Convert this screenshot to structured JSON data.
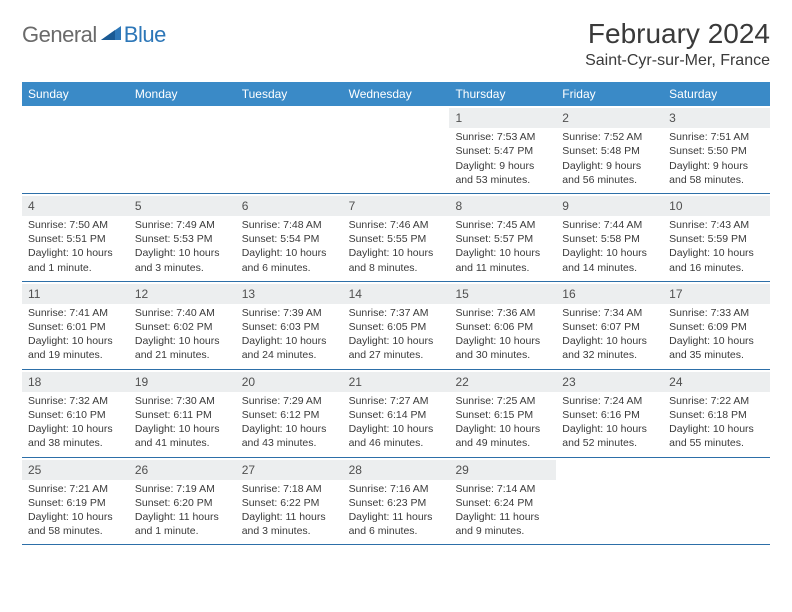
{
  "brand": {
    "part1": "General",
    "part2": "Blue"
  },
  "title": "February 2024",
  "location": "Saint-Cyr-sur-Mer, France",
  "colors": {
    "header_bg": "#3a8ac7",
    "row_border": "#2d6fa8",
    "daynum_bg": "#eceeef",
    "brand_gray": "#6a6a6a",
    "brand_blue": "#2d77b8"
  },
  "weekdays": [
    "Sunday",
    "Monday",
    "Tuesday",
    "Wednesday",
    "Thursday",
    "Friday",
    "Saturday"
  ],
  "weeks": [
    [
      null,
      null,
      null,
      null,
      {
        "n": "1",
        "sr": "Sunrise: 7:53 AM",
        "ss": "Sunset: 5:47 PM",
        "d1": "Daylight: 9 hours",
        "d2": "and 53 minutes."
      },
      {
        "n": "2",
        "sr": "Sunrise: 7:52 AM",
        "ss": "Sunset: 5:48 PM",
        "d1": "Daylight: 9 hours",
        "d2": "and 56 minutes."
      },
      {
        "n": "3",
        "sr": "Sunrise: 7:51 AM",
        "ss": "Sunset: 5:50 PM",
        "d1": "Daylight: 9 hours",
        "d2": "and 58 minutes."
      }
    ],
    [
      {
        "n": "4",
        "sr": "Sunrise: 7:50 AM",
        "ss": "Sunset: 5:51 PM",
        "d1": "Daylight: 10 hours",
        "d2": "and 1 minute."
      },
      {
        "n": "5",
        "sr": "Sunrise: 7:49 AM",
        "ss": "Sunset: 5:53 PM",
        "d1": "Daylight: 10 hours",
        "d2": "and 3 minutes."
      },
      {
        "n": "6",
        "sr": "Sunrise: 7:48 AM",
        "ss": "Sunset: 5:54 PM",
        "d1": "Daylight: 10 hours",
        "d2": "and 6 minutes."
      },
      {
        "n": "7",
        "sr": "Sunrise: 7:46 AM",
        "ss": "Sunset: 5:55 PM",
        "d1": "Daylight: 10 hours",
        "d2": "and 8 minutes."
      },
      {
        "n": "8",
        "sr": "Sunrise: 7:45 AM",
        "ss": "Sunset: 5:57 PM",
        "d1": "Daylight: 10 hours",
        "d2": "and 11 minutes."
      },
      {
        "n": "9",
        "sr": "Sunrise: 7:44 AM",
        "ss": "Sunset: 5:58 PM",
        "d1": "Daylight: 10 hours",
        "d2": "and 14 minutes."
      },
      {
        "n": "10",
        "sr": "Sunrise: 7:43 AM",
        "ss": "Sunset: 5:59 PM",
        "d1": "Daylight: 10 hours",
        "d2": "and 16 minutes."
      }
    ],
    [
      {
        "n": "11",
        "sr": "Sunrise: 7:41 AM",
        "ss": "Sunset: 6:01 PM",
        "d1": "Daylight: 10 hours",
        "d2": "and 19 minutes."
      },
      {
        "n": "12",
        "sr": "Sunrise: 7:40 AM",
        "ss": "Sunset: 6:02 PM",
        "d1": "Daylight: 10 hours",
        "d2": "and 21 minutes."
      },
      {
        "n": "13",
        "sr": "Sunrise: 7:39 AM",
        "ss": "Sunset: 6:03 PM",
        "d1": "Daylight: 10 hours",
        "d2": "and 24 minutes."
      },
      {
        "n": "14",
        "sr": "Sunrise: 7:37 AM",
        "ss": "Sunset: 6:05 PM",
        "d1": "Daylight: 10 hours",
        "d2": "and 27 minutes."
      },
      {
        "n": "15",
        "sr": "Sunrise: 7:36 AM",
        "ss": "Sunset: 6:06 PM",
        "d1": "Daylight: 10 hours",
        "d2": "and 30 minutes."
      },
      {
        "n": "16",
        "sr": "Sunrise: 7:34 AM",
        "ss": "Sunset: 6:07 PM",
        "d1": "Daylight: 10 hours",
        "d2": "and 32 minutes."
      },
      {
        "n": "17",
        "sr": "Sunrise: 7:33 AM",
        "ss": "Sunset: 6:09 PM",
        "d1": "Daylight: 10 hours",
        "d2": "and 35 minutes."
      }
    ],
    [
      {
        "n": "18",
        "sr": "Sunrise: 7:32 AM",
        "ss": "Sunset: 6:10 PM",
        "d1": "Daylight: 10 hours",
        "d2": "and 38 minutes."
      },
      {
        "n": "19",
        "sr": "Sunrise: 7:30 AM",
        "ss": "Sunset: 6:11 PM",
        "d1": "Daylight: 10 hours",
        "d2": "and 41 minutes."
      },
      {
        "n": "20",
        "sr": "Sunrise: 7:29 AM",
        "ss": "Sunset: 6:12 PM",
        "d1": "Daylight: 10 hours",
        "d2": "and 43 minutes."
      },
      {
        "n": "21",
        "sr": "Sunrise: 7:27 AM",
        "ss": "Sunset: 6:14 PM",
        "d1": "Daylight: 10 hours",
        "d2": "and 46 minutes."
      },
      {
        "n": "22",
        "sr": "Sunrise: 7:25 AM",
        "ss": "Sunset: 6:15 PM",
        "d1": "Daylight: 10 hours",
        "d2": "and 49 minutes."
      },
      {
        "n": "23",
        "sr": "Sunrise: 7:24 AM",
        "ss": "Sunset: 6:16 PM",
        "d1": "Daylight: 10 hours",
        "d2": "and 52 minutes."
      },
      {
        "n": "24",
        "sr": "Sunrise: 7:22 AM",
        "ss": "Sunset: 6:18 PM",
        "d1": "Daylight: 10 hours",
        "d2": "and 55 minutes."
      }
    ],
    [
      {
        "n": "25",
        "sr": "Sunrise: 7:21 AM",
        "ss": "Sunset: 6:19 PM",
        "d1": "Daylight: 10 hours",
        "d2": "and 58 minutes."
      },
      {
        "n": "26",
        "sr": "Sunrise: 7:19 AM",
        "ss": "Sunset: 6:20 PM",
        "d1": "Daylight: 11 hours",
        "d2": "and 1 minute."
      },
      {
        "n": "27",
        "sr": "Sunrise: 7:18 AM",
        "ss": "Sunset: 6:22 PM",
        "d1": "Daylight: 11 hours",
        "d2": "and 3 minutes."
      },
      {
        "n": "28",
        "sr": "Sunrise: 7:16 AM",
        "ss": "Sunset: 6:23 PM",
        "d1": "Daylight: 11 hours",
        "d2": "and 6 minutes."
      },
      {
        "n": "29",
        "sr": "Sunrise: 7:14 AM",
        "ss": "Sunset: 6:24 PM",
        "d1": "Daylight: 11 hours",
        "d2": "and 9 minutes."
      },
      null,
      null
    ]
  ]
}
